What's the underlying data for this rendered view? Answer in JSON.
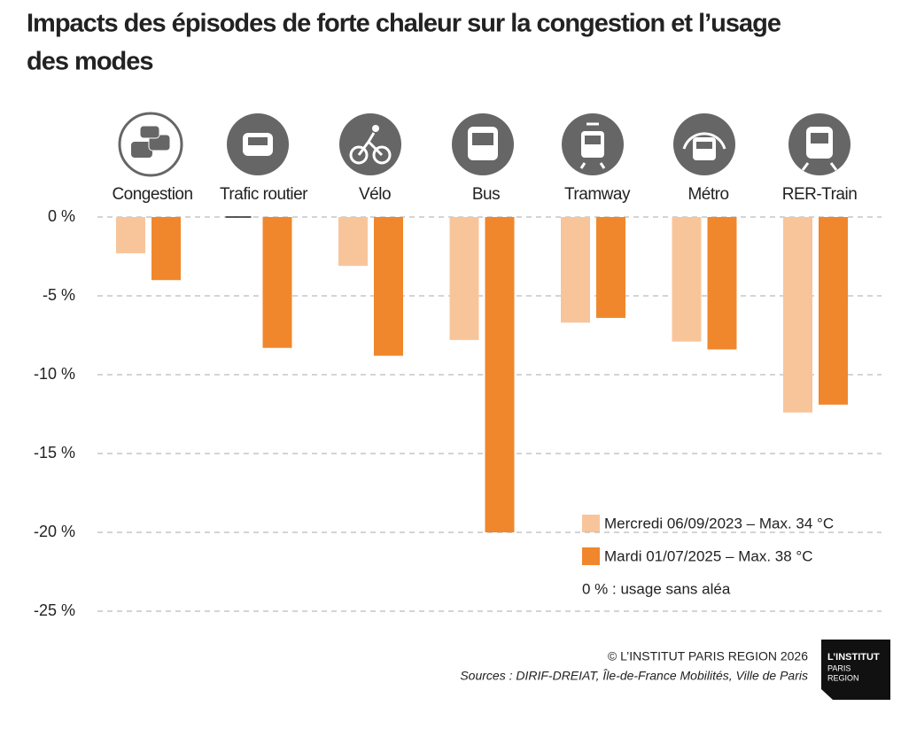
{
  "chart_data": {
    "type": "bar",
    "title": "Impacts des épisodes de forte chaleur sur la congestion et l’usage des modes",
    "categories": [
      "Congestion",
      "Trafic routier",
      "Vélo",
      "Bus",
      "Tramway",
      "Métro",
      "RER-Train"
    ],
    "series": [
      {
        "name": "Mercredi 06/09/2023 – Max. 34 °C",
        "color": "#f8c59b",
        "values": [
          -2.3,
          0,
          -3.1,
          -7.8,
          -6.7,
          -7.9,
          -12.4
        ]
      },
      {
        "name": "Mardi 01/07/2025 – Max. 38 °C",
        "color": "#f0872c",
        "values": [
          -4.0,
          -8.3,
          -8.8,
          -20.0,
          -6.4,
          -8.4,
          -11.9
        ]
      }
    ],
    "ylim": [
      -25,
      0
    ],
    "yticks": [
      {
        "value": 0,
        "label": "0 %"
      },
      {
        "value": -5,
        "label": "-5 %"
      },
      {
        "value": -10,
        "label": "-10 %"
      },
      {
        "value": -15,
        "label": "-15 %"
      },
      {
        "value": -20,
        "label": "-20 %"
      },
      {
        "value": -25,
        "label": "-25 %"
      }
    ],
    "grid": true,
    "annotation": "0 % : usage sans aléa",
    "copyright": "© L’INSTITUT PARIS REGION 2026",
    "sources": "Sources : DIRIF-DREIAT, Île-de-France Mobilités, Ville de Paris",
    "logo": [
      "L’INSTITUT",
      "PARIS",
      "REGION"
    ]
  }
}
